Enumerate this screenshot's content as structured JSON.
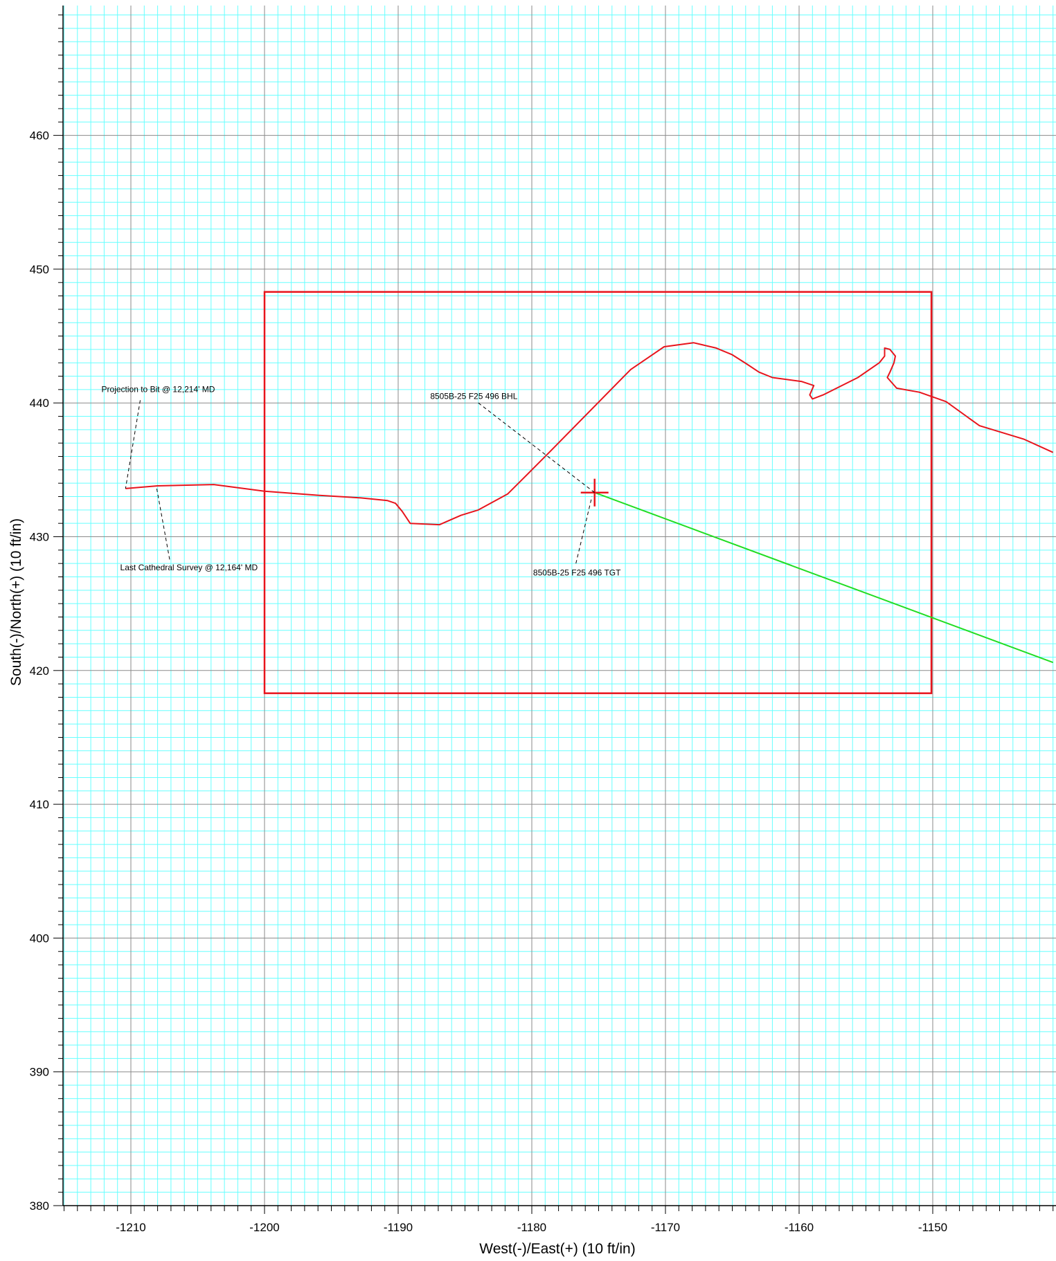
{
  "chart_data": {
    "type": "line",
    "title": "",
    "xlabel": "West(-)/East(+) (10 ft/in)",
    "ylabel": "South(-)/North(+) (10 ft/in)",
    "xlim": [
      -1215,
      -1141
    ],
    "ylim": [
      380,
      470
    ],
    "x_ticks": [
      -1210,
      -1200,
      -1190,
      -1180,
      -1170,
      -1160,
      -1150
    ],
    "x_tick_labels": [
      "-1210",
      "-1200",
      "-1190",
      "-1180",
      "-1170",
      "-1160",
      "-1150"
    ],
    "y_ticks": [
      380,
      390,
      400,
      410,
      420,
      430,
      440,
      450,
      460
    ],
    "y_tick_labels": [
      "380",
      "390",
      "400",
      "410",
      "420",
      "430",
      "440",
      "450",
      "460"
    ],
    "grid": {
      "major": true,
      "minor": true,
      "major_color": "#8a8a8a",
      "minor_color": "#66ffff"
    },
    "series": [
      {
        "role": "actual-wellpath",
        "color": "#e8141c",
        "points": [
          [
            -1210.4,
            433.6
          ],
          [
            -1208.0,
            433.8
          ],
          [
            -1203.8,
            433.9
          ],
          [
            -1200.0,
            433.4
          ],
          [
            -1196.0,
            433.1
          ],
          [
            -1192.8,
            432.9
          ],
          [
            -1190.8,
            432.7
          ],
          [
            -1190.2,
            432.5
          ],
          [
            -1189.7,
            431.9
          ],
          [
            -1189.1,
            431.0
          ],
          [
            -1186.9,
            430.9
          ],
          [
            -1186.0,
            431.3
          ],
          [
            -1185.3,
            431.6
          ],
          [
            -1184.0,
            432.0
          ],
          [
            -1181.8,
            433.2
          ],
          [
            -1180.8,
            434.2
          ],
          [
            -1179.7,
            435.3
          ],
          [
            -1178.7,
            436.3
          ],
          [
            -1172.6,
            442.5
          ],
          [
            -1170.1,
            444.2
          ],
          [
            -1167.9,
            444.5
          ],
          [
            -1166.2,
            444.1
          ],
          [
            -1165.0,
            443.6
          ],
          [
            -1163.9,
            442.9
          ],
          [
            -1163.0,
            442.3
          ],
          [
            -1162.0,
            441.9
          ],
          [
            -1159.8,
            441.6
          ],
          [
            -1158.9,
            441.3
          ],
          [
            -1159.2,
            440.6
          ],
          [
            -1159.0,
            440.3
          ],
          [
            -1158.2,
            440.6
          ],
          [
            -1155.6,
            441.9
          ],
          [
            -1154.0,
            443.0
          ],
          [
            -1153.6,
            443.5
          ],
          [
            -1153.6,
            444.1
          ],
          [
            -1153.2,
            444.0
          ],
          [
            -1152.8,
            443.5
          ],
          [
            -1152.9,
            443.0
          ],
          [
            -1153.2,
            442.3
          ],
          [
            -1153.4,
            441.9
          ],
          [
            -1152.7,
            441.1
          ],
          [
            -1151.0,
            440.8
          ],
          [
            -1149.0,
            440.1
          ],
          [
            -1146.5,
            438.3
          ],
          [
            -1143.2,
            437.3
          ],
          [
            -1141.0,
            436.3
          ]
        ]
      },
      {
        "role": "plan-line",
        "color": "#22dd22",
        "points": [
          [
            -1175.3,
            433.3
          ],
          [
            -1141.0,
            420.6
          ]
        ]
      }
    ],
    "target_box": {
      "x": [
        -1200.0,
        -1150.1
      ],
      "y": [
        418.3,
        448.3
      ],
      "color": "#e8141c"
    },
    "target_marker": {
      "x": -1175.3,
      "y": 433.3,
      "color": "#e8141c"
    },
    "annotations": [
      {
        "text": "Projection to Bit @ 12,214' MD",
        "label_at": [
          -1212.2,
          440.8
        ],
        "leader_from": [
          -1209.3,
          440.2
        ],
        "leader_to": [
          -1210.4,
          433.6
        ]
      },
      {
        "text": "Last Cathedral Survey @ 12,164' MD",
        "label_at": [
          -1210.8,
          427.5
        ],
        "leader_from": [
          -1207.1,
          428.3
        ],
        "leader_to": [
          -1208.1,
          433.8
        ]
      },
      {
        "text": "8505B-25 F25 496 BHL",
        "label_at": [
          -1187.6,
          440.3
        ],
        "leader_from": [
          -1184.0,
          440.0
        ],
        "leader_to": [
          -1175.3,
          433.3
        ]
      },
      {
        "text": "8505B-25 F25 496 TGT",
        "label_at": [
          -1179.9,
          427.1
        ],
        "leader_from": [
          -1176.7,
          428.0
        ],
        "leader_to": [
          -1175.5,
          433.0
        ]
      }
    ]
  }
}
